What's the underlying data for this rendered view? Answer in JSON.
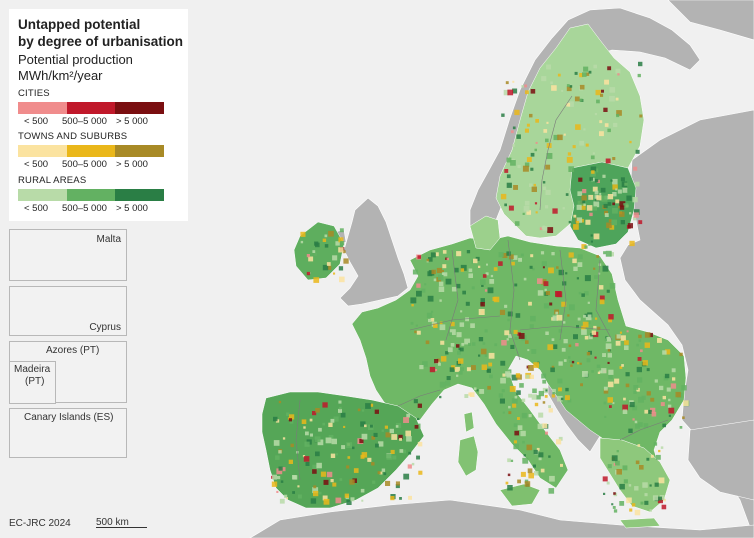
{
  "legend": {
    "title_line1": "Untapped potential",
    "title_line2": "by degree of urbanisation",
    "subtitle_line1": "Potential production",
    "subtitle_line2": "MWh/km²/year",
    "categories": [
      {
        "label": "CITIES",
        "colors": [
          "#f08c8c",
          "#c0182a",
          "#7a0e10"
        ],
        "ticks": [
          "< 500",
          "500–5 000",
          "> 5 000"
        ]
      },
      {
        "label": "TOWNS AND SUBURBS",
        "colors": [
          "#fbe3a0",
          "#eab71a",
          "#a88a26"
        ],
        "ticks": [
          "< 500",
          "500–5 000",
          "> 5 000"
        ]
      },
      {
        "label": "RURAL AREAS",
        "colors": [
          "#b8dba8",
          "#63b162",
          "#2a7e45"
        ],
        "ticks": [
          "< 500",
          "500–5 000",
          "> 5 000"
        ]
      }
    ]
  },
  "insets": {
    "malta": "Malta",
    "cyprus": "Cyprus",
    "azores": "Azores (PT)",
    "madeira_line1": "Madeira",
    "madeira_line2": "(PT)",
    "canary": "Canary Islands (ES)"
  },
  "footer": {
    "credit": "EC-JRC 2024",
    "scale": "500 km"
  },
  "colors": {
    "sea": "#f0f0f0",
    "non_eu_land": "#b3b3b3",
    "border": "#9a9a9a"
  }
}
